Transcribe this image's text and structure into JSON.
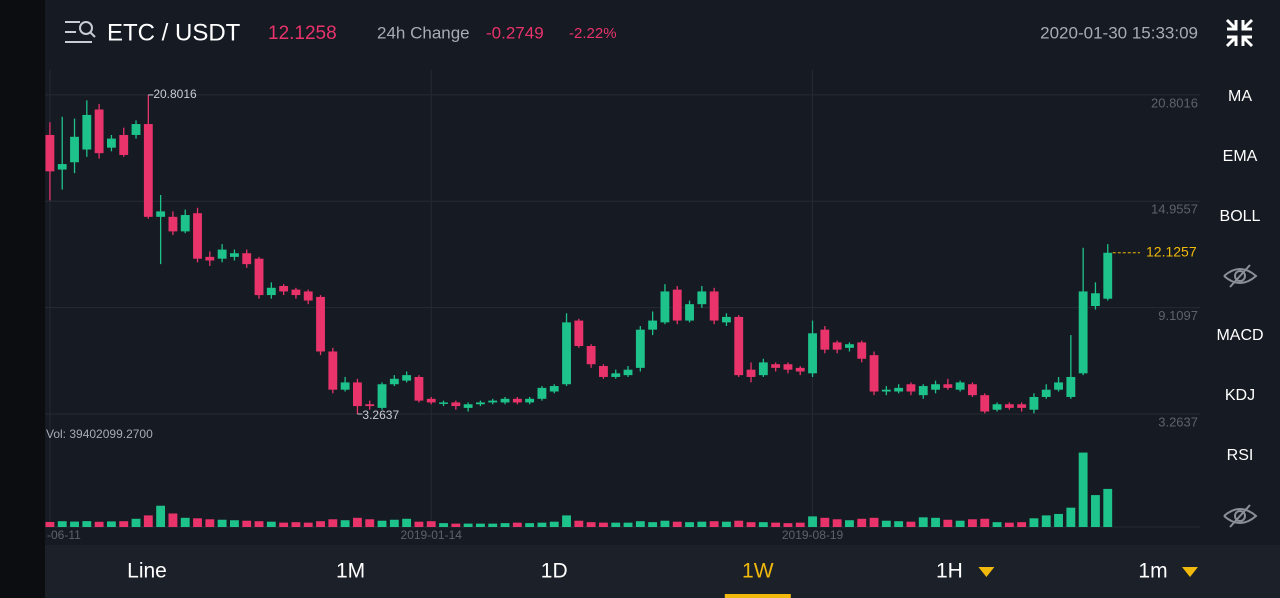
{
  "header": {
    "pair": "ETC / USDT",
    "price": "12.1258",
    "change_label": "24h Change",
    "change": "-0.2749",
    "change_pct": "-2.22%",
    "datetime": "2020-01-30 15:33:09"
  },
  "main_indicators": [
    "MA",
    "EMA",
    "BOLL"
  ],
  "sub_indicators": [
    "MACD",
    "KDJ",
    "RSI"
  ],
  "tabs": [
    {
      "label": "Line",
      "dropdown": false
    },
    {
      "label": "1M",
      "dropdown": false
    },
    {
      "label": "1D",
      "dropdown": false
    },
    {
      "label": "1W",
      "dropdown": false
    },
    {
      "label": "1H",
      "dropdown": true
    },
    {
      "label": "1m",
      "dropdown": true
    }
  ],
  "active_tab": 3,
  "chart_data": {
    "type": "candlestick",
    "up_color": "#1ec28b",
    "down_color": "#e8336b",
    "grid": true,
    "open": [
      18.6,
      16.7,
      17.1,
      17.8,
      20.0,
      17.9,
      18.6,
      18.6,
      19.2,
      14.1,
      14.1,
      13.3,
      14.3,
      11.9,
      11.8,
      11.9,
      12.1,
      11.8,
      9.8,
      10.3,
      10.1,
      10.0,
      9.7,
      6.7,
      4.6,
      5.0,
      3.8,
      3.6,
      4.9,
      5.1,
      5.3,
      4.1,
      3.9,
      3.9,
      3.6,
      3.8,
      3.9,
      3.9,
      4.1,
      3.9,
      4.1,
      4.5,
      4.9,
      8.4,
      7.0,
      5.9,
      5.3,
      5.4,
      5.8,
      7.9,
      8.3,
      10.1,
      8.4,
      9.3,
      10.0,
      8.3,
      8.6,
      5.7,
      5.4,
      6.0,
      6.0,
      5.8,
      5.5,
      7.9,
      7.2,
      6.9,
      7.2,
      6.5,
      4.5,
      4.5,
      4.9,
      4.3,
      4.6,
      4.9,
      4.6,
      4.9,
      4.3,
      3.5,
      3.8,
      3.8,
      3.5,
      4.2,
      4.6,
      4.2,
      5.5,
      9.2,
      9.6
    ],
    "high": [
      19.3,
      19.6,
      19.5,
      20.5,
      20.3,
      18.6,
      19.0,
      19.4,
      20.8016,
      15.3,
      14.4,
      14.5,
      14.6,
      12.2,
      12.6,
      12.3,
      12.3,
      11.9,
      10.5,
      10.4,
      10.2,
      10.1,
      9.8,
      6.9,
      5.3,
      5.2,
      4.0,
      5.0,
      5.4,
      5.6,
      5.4,
      4.2,
      4.0,
      4.0,
      3.9,
      4.0,
      4.1,
      4.2,
      4.2,
      4.2,
      4.8,
      4.9,
      8.8,
      8.5,
      7.1,
      6.0,
      5.7,
      5.9,
      8.1,
      8.9,
      10.4,
      10.3,
      9.5,
      10.3,
      10.2,
      8.8,
      8.7,
      6.1,
      6.3,
      6.1,
      6.1,
      5.9,
      8.4,
      8.1,
      7.3,
      7.2,
      7.3,
      6.7,
      4.8,
      4.9,
      5.0,
      4.9,
      5.1,
      5.2,
      5.1,
      5.0,
      4.4,
      3.9,
      3.9,
      3.9,
      4.4,
      4.9,
      5.3,
      7.6,
      12.4,
      10.5,
      12.6
    ],
    "low": [
      15.0,
      15.6,
      16.5,
      17.4,
      17.3,
      17.7,
      17.4,
      18.4,
      14.0,
      11.5,
      13.1,
      13.2,
      11.6,
      11.4,
      11.6,
      11.7,
      11.3,
      9.6,
      9.6,
      9.8,
      9.6,
      9.3,
      6.5,
      4.4,
      4.5,
      3.2637,
      3.5,
      3.5,
      4.8,
      5.0,
      3.9,
      3.8,
      3.7,
      3.5,
      3.4,
      3.7,
      3.8,
      3.8,
      3.8,
      3.8,
      4.0,
      4.4,
      4.8,
      6.9,
      5.8,
      5.2,
      5.2,
      5.3,
      5.6,
      7.6,
      8.2,
      8.2,
      8.3,
      9.1,
      8.2,
      8.1,
      5.3,
      5.0,
      5.3,
      5.6,
      5.5,
      5.4,
      5.3,
      6.6,
      6.6,
      6.7,
      6.1,
      4.3,
      4.3,
      4.4,
      4.3,
      4.1,
      4.4,
      4.6,
      4.5,
      4.2,
      3.3,
      3.4,
      3.5,
      3.4,
      3.3,
      4.1,
      4.5,
      4.1,
      5.4,
      9.0,
      9.5
    ],
    "close": [
      16.6,
      17.0,
      18.5,
      19.7,
      17.6,
      18.4,
      17.5,
      19.2,
      14.1,
      14.4,
      13.3,
      14.2,
      11.8,
      11.7,
      12.3,
      12.1,
      11.5,
      9.8,
      10.2,
      10.0,
      9.8,
      9.5,
      6.7,
      4.6,
      5.0,
      3.7,
      3.7,
      4.9,
      5.2,
      5.4,
      4.0,
      3.9,
      3.9,
      3.7,
      3.8,
      3.9,
      4.0,
      4.1,
      3.9,
      4.1,
      4.7,
      4.8,
      8.3,
      7.0,
      6.0,
      5.3,
      5.5,
      5.7,
      7.9,
      8.4,
      10.0,
      8.4,
      9.3,
      10.0,
      8.4,
      8.6,
      5.4,
      5.3,
      6.1,
      5.8,
      5.7,
      5.6,
      7.7,
      6.8,
      6.8,
      7.1,
      6.3,
      4.5,
      4.6,
      4.7,
      4.5,
      4.8,
      4.9,
      4.7,
      5.0,
      4.3,
      3.4,
      3.8,
      3.6,
      3.6,
      4.2,
      4.6,
      5.0,
      5.3,
      10.0,
      9.9,
      12.1257
    ],
    "volume": [
      5200000,
      6000000,
      5600000,
      6100000,
      5400000,
      5800000,
      6000000,
      8500000,
      12000000,
      22000000,
      14000000,
      9500000,
      9000000,
      8000000,
      7500000,
      7000000,
      6500000,
      6000000,
      5500000,
      4500000,
      5000000,
      4500000,
      6000000,
      8000000,
      7000000,
      9500000,
      8000000,
      6500000,
      7500000,
      8500000,
      5500000,
      6000000,
      4000000,
      3500000,
      3500000,
      3500000,
      3500000,
      4000000,
      4500000,
      4000000,
      4500000,
      5500000,
      12000000,
      6500000,
      5000000,
      4500000,
      4500000,
      4500000,
      6000000,
      5000000,
      6500000,
      5500000,
      5000000,
      5500000,
      6000000,
      5500000,
      6500000,
      5000000,
      5000000,
      4500000,
      4000000,
      4500000,
      11000000,
      9500000,
      8000000,
      7000000,
      8500000,
      9500000,
      6500000,
      6000000,
      5500000,
      10000000,
      9500000,
      7500000,
      6500000,
      8000000,
      8500000,
      5000000,
      4500000,
      5000000,
      9000000,
      12000000,
      13500000,
      20000000,
      77000000,
      33000000,
      39402099.27
    ],
    "xlim": [
      -0.4,
      93.5
    ],
    "xticks": [
      {
        "value": 0,
        "label": "-06-11"
      },
      {
        "value": 31,
        "label": "2019-01-14"
      },
      {
        "value": 62,
        "label": "2019-08-19"
      }
    ],
    "ylim": [
      2.66,
      22.17
    ],
    "yticks": [
      20.8016,
      14.9557,
      9.1097,
      3.2637
    ],
    "vol_ylim": [
      0,
      90000000
    ],
    "volume_label": "Vol: 39402099.2700",
    "annotations": [
      {
        "index": 8,
        "label": "20.8016"
      },
      {
        "index": 25,
        "label": "3.2637"
      }
    ],
    "last_value": 12.1257,
    "last_label": "12.1257",
    "last_color": "#f0b90b"
  }
}
